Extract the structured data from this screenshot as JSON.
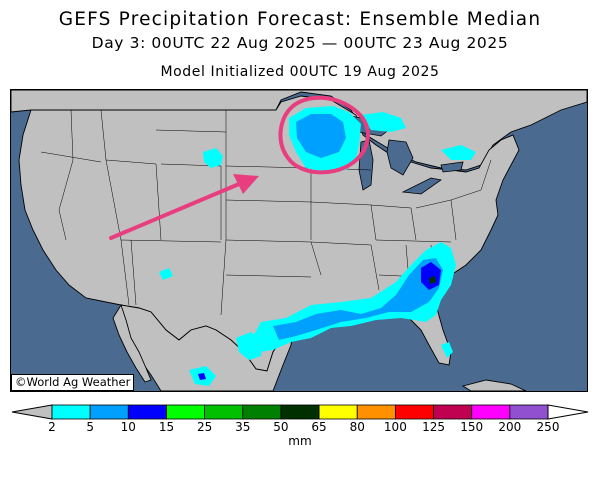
{
  "title": "GEFS Precipitation Forecast: Ensemble Median",
  "subtitle": "Day 3: 00UTC 22 Aug 2025 — 00UTC 23 Aug 2025",
  "init_line": "Model Initialized 00UTC 19 Aug 2025",
  "credit": "©World Ag Weather",
  "colorbar": {
    "units": "mm",
    "ticks": [
      "2",
      "5",
      "10",
      "15",
      "25",
      "35",
      "50",
      "65",
      "80",
      "100",
      "125",
      "150",
      "200",
      "250"
    ],
    "colors": [
      "#00ffff",
      "#00a0ff",
      "#0000ff",
      "#00ff00",
      "#00c000",
      "#008000",
      "#003000",
      "#ffff00",
      "#ff9000",
      "#ff0000",
      "#c00050",
      "#ff00ff",
      "#9050d0"
    ],
    "under_color": "#c0c0c0",
    "over_color": "#ffffff"
  },
  "map": {
    "region": "Contiguous United States",
    "land_color": "#c0c0c0",
    "water_color": "#4a6a90",
    "annotation_color": "#e83e80",
    "annotations": [
      "circle-upper-midwest",
      "arrow-rockies-to-upper-midwest"
    ]
  }
}
